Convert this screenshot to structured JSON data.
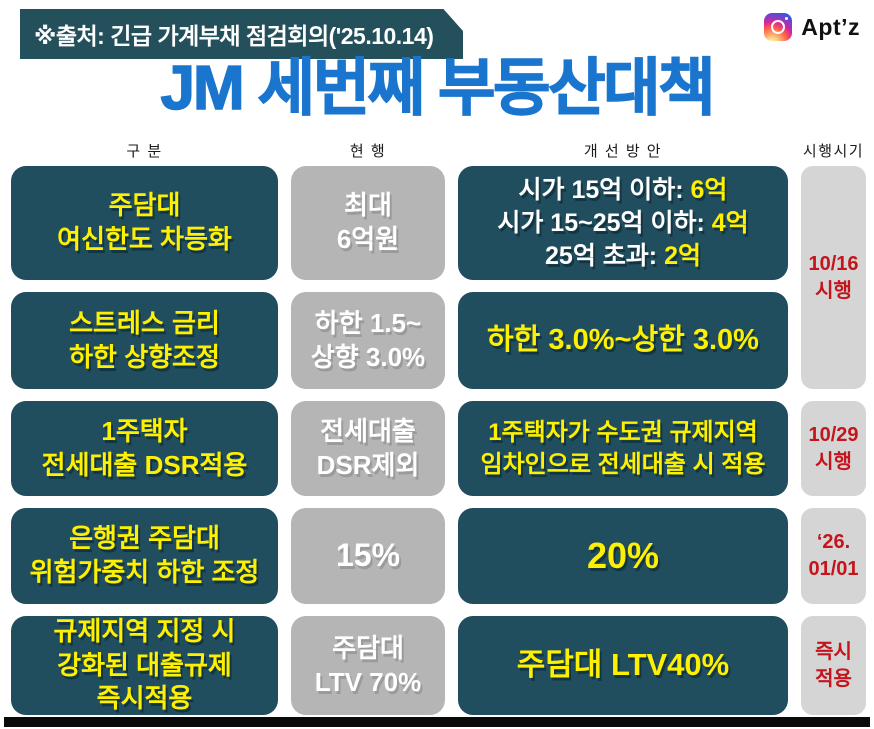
{
  "banner": {
    "text": "※출처: 긴급 가계부채 점검회의('25.10.14)"
  },
  "brand": {
    "name": "Apt’z",
    "icon": "instagram-icon"
  },
  "title": "JM 세번째 부동산대책",
  "colors": {
    "teal": "#214e5e",
    "gray": "#b5b5b5",
    "lightgray": "#d5d5d5",
    "yellow": "#fdf000",
    "red": "#c4151c",
    "blue": "#1a75ce"
  },
  "table": {
    "headers": [
      "구 분",
      "현 행",
      "개 선 방 안",
      "시행시기"
    ],
    "rows": [
      {
        "category": [
          "주담대",
          "여신한도 차등화"
        ],
        "current": [
          "최대",
          "6억원"
        ],
        "improvement": [
          [
            {
              "t": "시가 15억 이하: "
            },
            {
              "t": "6억"
            }
          ],
          [
            {
              "t": "시가 15~25억 이하: "
            },
            {
              "t": "4억"
            }
          ],
          [
            {
              "t": "25억 초과: "
            },
            {
              "t": "2억"
            }
          ]
        ]
      },
      {
        "category": [
          "스트레스 금리",
          "하한 상향조정"
        ],
        "current": [
          "하한 1.5~",
          "상향 3.0%"
        ],
        "improvement": [
          [
            {
              "t": "하한 3.0%~상한 3.0%"
            }
          ]
        ]
      },
      {
        "category": [
          "1주택자",
          "전세대출 DSR적용"
        ],
        "current": [
          "전세대출",
          "DSR제외"
        ],
        "improvement": [
          [
            {
              "t": "1주택자가 수도권 규제지역"
            }
          ],
          [
            {
              "t": "임차인으로 전세대출 시 적용"
            }
          ]
        ]
      },
      {
        "category": [
          "은행권 주담대",
          "위험가중치 하한 조정"
        ],
        "current": [
          "15%"
        ],
        "improvement": [
          [
            {
              "t": "20%"
            }
          ]
        ]
      },
      {
        "category": [
          "규제지역 지정 시",
          "강화된 대출규제",
          "즉시적용"
        ],
        "current": [
          "주담대",
          "LTV 70%"
        ],
        "improvement": [
          [
            {
              "t": "주담대 LTV40%"
            }
          ]
        ]
      }
    ],
    "schedules": [
      {
        "lines": [
          "10/16",
          "시행"
        ]
      },
      {
        "lines": [
          "10/29",
          "시행"
        ]
      },
      {
        "lines": [
          "‘26.",
          "01/01"
        ]
      },
      {
        "lines": [
          "즉시",
          "적용"
        ]
      }
    ]
  }
}
